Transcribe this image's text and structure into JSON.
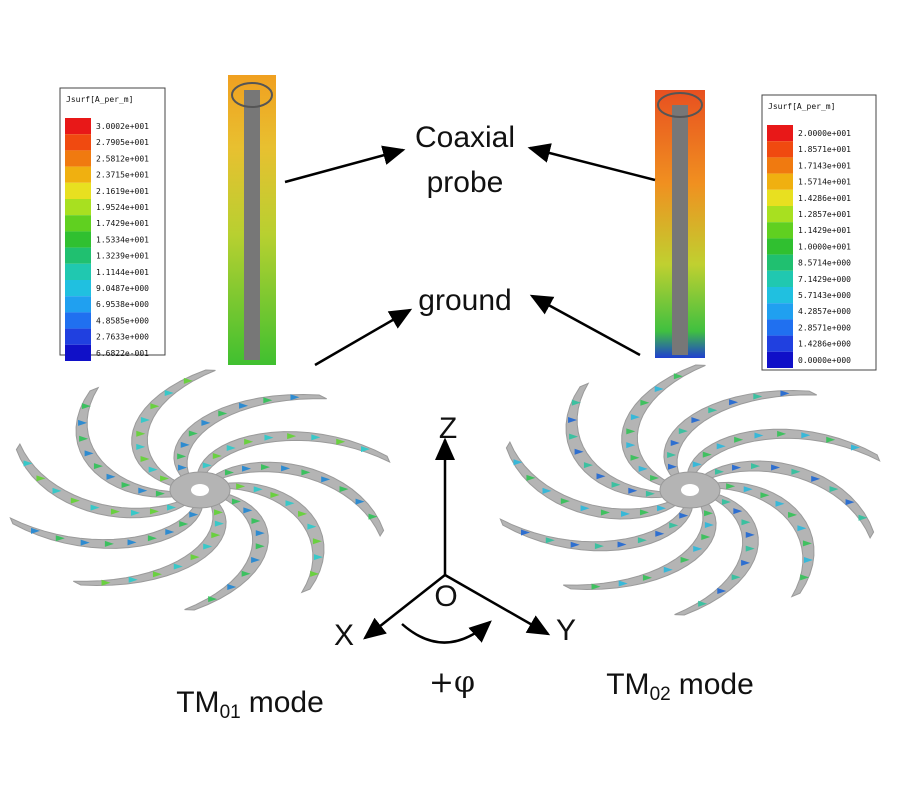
{
  "legends": [
    {
      "title": "Jsurf[A_per_m]",
      "labels": [
        "3.0002e+001",
        "2.7905e+001",
        "2.5812e+001",
        "2.3715e+001",
        "2.1619e+001",
        "1.9524e+001",
        "1.7429e+001",
        "1.5334e+001",
        "1.3239e+001",
        "1.1144e+001",
        "9.0487e+000",
        "6.9538e+000",
        "4.8585e+000",
        "2.7633e+000",
        "6.6822e-001"
      ]
    },
    {
      "title": "Jsurf[A_per_m]",
      "labels": [
        "2.0000e+001",
        "1.8571e+001",
        "1.7143e+001",
        "1.5714e+001",
        "1.4286e+001",
        "1.2857e+001",
        "1.1429e+001",
        "1.0000e+001",
        "8.5714e+000",
        "7.1429e+000",
        "5.7143e+000",
        "4.2857e+000",
        "2.8571e+000",
        "1.4286e+000",
        "0.0000e+000"
      ]
    }
  ],
  "labels": {
    "coaxial": [
      "Coaxial",
      "probe"
    ],
    "ground": "ground"
  },
  "axes": {
    "z": "Z",
    "origin": "O",
    "x": "X",
    "y": "Y",
    "rotation": "+φ"
  },
  "modes": [
    {
      "name": "TM",
      "subscript": "01",
      "suffix": "mode"
    },
    {
      "name": "TM",
      "subscript": "02",
      "suffix": "mode"
    }
  ]
}
